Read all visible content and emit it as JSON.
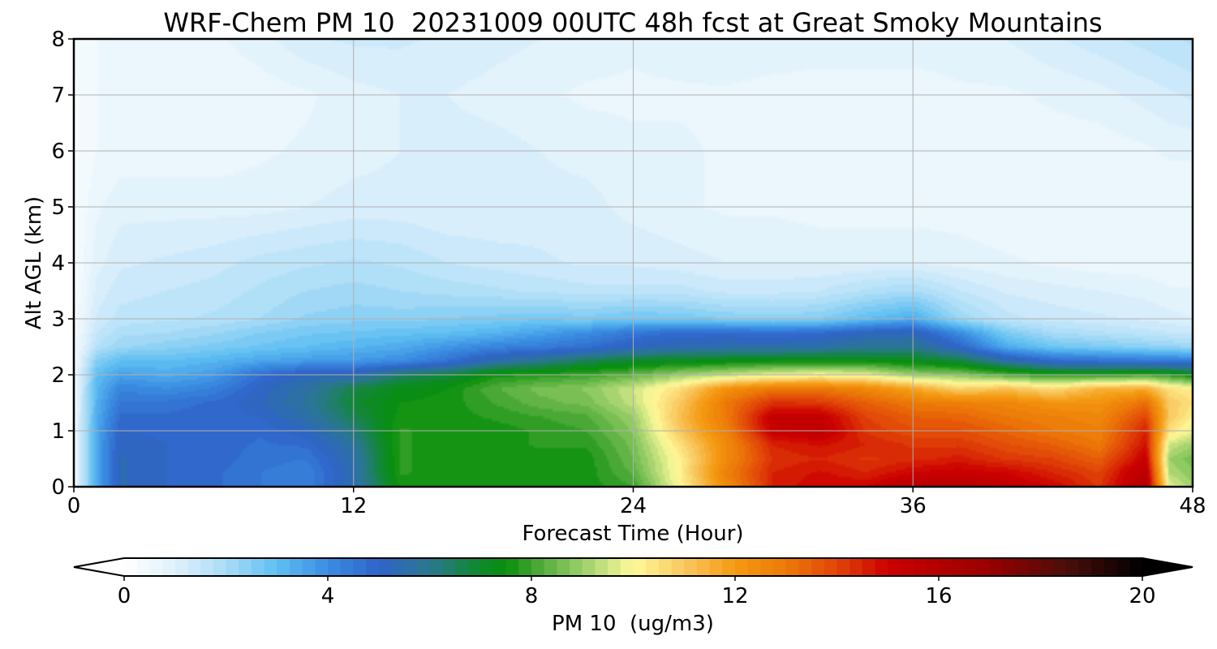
{
  "chart_data": {
    "type": "heatmap",
    "title": "WRF-Chem PM 10  20231009 00UTC 48h fcst at Great Smoky Mountains",
    "xlabel": "Forecast Time (Hour)",
    "ylabel": "Alt AGL (km)",
    "xlim": [
      0,
      48
    ],
    "ylim": [
      0,
      8
    ],
    "x_ticks": [
      0,
      12,
      24,
      36,
      48
    ],
    "y_ticks": [
      0,
      1,
      2,
      3,
      4,
      5,
      6,
      7,
      8
    ],
    "grid": true,
    "colorbar": {
      "label": "PM 10  (ug/m3)",
      "range": [
        0,
        20
      ],
      "ticks": [
        0,
        4,
        8,
        12,
        16,
        20
      ],
      "extend": "both",
      "orientation": "horizontal",
      "colors": [
        {
          "v": 0,
          "c": "#ffffff"
        },
        {
          "v": 1,
          "c": "#dff1fb"
        },
        {
          "v": 2,
          "c": "#a9dcf7"
        },
        {
          "v": 3,
          "c": "#5fbff2"
        },
        {
          "v": 4,
          "c": "#3a8de2"
        },
        {
          "v": 5,
          "c": "#2f63c8"
        },
        {
          "v": 6,
          "c": "#2a7790"
        },
        {
          "v": 7,
          "c": "#0f8a2a"
        },
        {
          "v": 7.5,
          "c": "#078f0b"
        },
        {
          "v": 8,
          "c": "#3ea32e"
        },
        {
          "v": 9,
          "c": "#9ccf6a"
        },
        {
          "v": 10,
          "c": "#fffa9a"
        },
        {
          "v": 11,
          "c": "#f8c860"
        },
        {
          "v": 12,
          "c": "#f59a10"
        },
        {
          "v": 13,
          "c": "#ec7a08"
        },
        {
          "v": 14,
          "c": "#e04408"
        },
        {
          "v": 15,
          "c": "#cc0000"
        },
        {
          "v": 17,
          "c": "#990000"
        },
        {
          "v": 18.5,
          "c": "#4a0e0a"
        },
        {
          "v": 20,
          "c": "#000000"
        }
      ]
    },
    "grid_x": [
      0,
      1,
      2,
      4,
      6,
      8,
      10,
      12,
      14,
      16,
      18,
      20,
      22,
      24,
      26,
      28,
      30,
      32,
      34,
      36,
      38,
      40,
      42,
      44,
      46,
      47,
      48
    ],
    "grid_y": [
      0,
      0.25,
      0.5,
      0.75,
      1,
      1.25,
      1.5,
      1.75,
      2,
      2.25,
      2.5,
      2.75,
      3,
      3.5,
      4,
      5,
      6,
      7,
      8
    ],
    "values": [
      [
        0.5,
        3.5,
        5.3,
        5.0,
        4.8,
        4.5,
        4.3,
        5.5,
        7.5,
        7.6,
        7.6,
        7.5,
        7.6,
        8.0,
        10.0,
        12.5,
        14.5,
        15.0,
        15.0,
        15.8,
        15.8,
        15.4,
        15.0,
        14.2,
        16.0,
        9.8,
        9.0
      ],
      [
        0.5,
        3.5,
        5.3,
        5.0,
        4.8,
        4.5,
        4.3,
        5.5,
        7.8,
        7.6,
        7.6,
        7.6,
        7.6,
        8.3,
        10.2,
        12.8,
        14.5,
        14.8,
        14.5,
        15.0,
        15.2,
        15.0,
        14.5,
        14.0,
        15.8,
        9.2,
        8.8
      ],
      [
        0.5,
        3.5,
        5.3,
        5.0,
        4.9,
        4.6,
        4.5,
        5.6,
        7.8,
        7.6,
        7.6,
        7.6,
        7.6,
        8.5,
        10.2,
        12.5,
        14.3,
        14.5,
        14.2,
        14.4,
        14.6,
        14.2,
        14.0,
        13.5,
        15.2,
        9.0,
        8.6
      ],
      [
        0.5,
        3.5,
        5.2,
        5.0,
        4.9,
        4.7,
        4.8,
        5.8,
        7.8,
        7.6,
        7.6,
        7.8,
        7.8,
        8.6,
        10.5,
        12.5,
        14.5,
        14.8,
        14.5,
        14.2,
        14.2,
        13.8,
        13.5,
        13.0,
        14.8,
        9.5,
        9.0
      ],
      [
        0.5,
        3.5,
        5.0,
        4.9,
        4.9,
        4.8,
        5.2,
        6.2,
        7.8,
        7.6,
        7.6,
        7.8,
        8.0,
        8.8,
        11.0,
        12.8,
        15.2,
        15.5,
        14.2,
        13.8,
        13.8,
        13.4,
        13.0,
        12.8,
        14.5,
        10.5,
        9.8
      ],
      [
        0.5,
        3.4,
        4.8,
        4.8,
        4.9,
        5.0,
        5.6,
        6.6,
        7.6,
        7.6,
        7.8,
        8.0,
        8.2,
        9.0,
        11.2,
        13.0,
        15.3,
        15.3,
        14.0,
        13.5,
        13.4,
        13.0,
        12.8,
        12.6,
        14.0,
        11.0,
        10.2
      ],
      [
        0.5,
        3.3,
        4.5,
        4.6,
        4.8,
        5.2,
        5.8,
        6.9,
        7.5,
        7.6,
        8.0,
        8.4,
        8.6,
        9.4,
        11.0,
        13.0,
        14.3,
        14.2,
        13.5,
        13.0,
        12.8,
        12.6,
        12.2,
        12.2,
        13.2,
        11.0,
        10.5
      ],
      [
        0.5,
        3.2,
        4.2,
        4.0,
        4.3,
        5.1,
        5.7,
        6.7,
        7.3,
        7.5,
        8.2,
        8.6,
        8.8,
        9.5,
        10.6,
        12.3,
        13.0,
        13.0,
        12.6,
        11.8,
        10.8,
        11.2,
        10.6,
        11.5,
        11.6,
        10.5,
        10.2
      ],
      [
        0.4,
        3.0,
        3.6,
        3.4,
        3.7,
        4.7,
        5.3,
        5.4,
        6.4,
        6.8,
        7.6,
        7.8,
        8.0,
        8.4,
        9.0,
        9.4,
        9.8,
        10.0,
        9.8,
        9.0,
        8.8,
        8.2,
        7.8,
        7.8,
        8.0,
        7.8,
        7.4
      ],
      [
        0.4,
        2.5,
        3.0,
        3.0,
        3.2,
        3.5,
        3.7,
        3.8,
        4.0,
        4.6,
        5.5,
        6.0,
        6.6,
        7.0,
        7.2,
        7.3,
        7.4,
        7.4,
        7.4,
        7.2,
        6.8,
        5.6,
        4.8,
        4.6,
        4.5,
        4.4,
        4.4
      ],
      [
        0.3,
        1.8,
        2.2,
        2.4,
        2.6,
        2.8,
        3.0,
        3.2,
        3.4,
        3.8,
        4.2,
        4.4,
        4.7,
        5.2,
        5.4,
        5.5,
        5.5,
        5.6,
        5.9,
        6.0,
        5.0,
        3.4,
        2.8,
        2.6,
        2.4,
        2.3,
        2.2
      ],
      [
        0.3,
        1.5,
        1.9,
        2.0,
        2.2,
        2.5,
        2.7,
        2.8,
        2.9,
        3.0,
        3.2,
        3.6,
        4.0,
        4.5,
        4.8,
        4.8,
        4.7,
        4.8,
        5.2,
        5.3,
        4.0,
        2.6,
        2.0,
        1.8,
        1.6,
        1.5,
        1.4
      ],
      [
        0.3,
        1.3,
        1.6,
        1.7,
        1.8,
        2.0,
        2.3,
        2.4,
        2.4,
        2.5,
        2.6,
        2.7,
        2.6,
        2.8,
        2.7,
        2.5,
        2.4,
        2.5,
        3.0,
        3.4,
        2.2,
        1.6,
        1.4,
        1.3,
        1.2,
        1.1,
        1.0
      ],
      [
        0.2,
        1.1,
        1.4,
        1.5,
        1.6,
        1.8,
        2.0,
        2.1,
        2.0,
        1.9,
        1.8,
        1.7,
        1.6,
        1.6,
        1.6,
        1.4,
        1.4,
        1.5,
        1.8,
        2.0,
        1.5,
        1.2,
        1.1,
        1.0,
        0.9,
        0.8,
        0.8
      ],
      [
        0.2,
        0.9,
        1.2,
        1.3,
        1.4,
        1.6,
        1.7,
        1.8,
        1.7,
        1.5,
        1.4,
        1.3,
        1.2,
        1.2,
        1.1,
        1.0,
        1.0,
        1.0,
        1.0,
        1.0,
        0.9,
        0.8,
        0.7,
        0.6,
        0.6,
        0.5,
        0.5
      ],
      [
        0.2,
        0.7,
        0.9,
        0.9,
        0.9,
        0.9,
        1.0,
        1.1,
        1.1,
        1.0,
        1.0,
        1.1,
        1.1,
        0.9,
        0.8,
        0.7,
        0.7,
        0.6,
        0.6,
        0.6,
        0.6,
        0.5,
        0.5,
        0.5,
        0.5,
        0.5,
        0.5
      ],
      [
        0.2,
        0.5,
        0.6,
        0.6,
        0.6,
        0.7,
        0.8,
        0.9,
        1.0,
        1.1,
        1.1,
        1.0,
        0.9,
        0.8,
        0.8,
        0.7,
        0.7,
        0.6,
        0.6,
        0.6,
        0.6,
        0.6,
        0.6,
        0.6,
        0.7,
        0.8,
        0.8
      ],
      [
        0.2,
        0.5,
        0.5,
        0.5,
        0.5,
        0.6,
        0.7,
        0.9,
        1.0,
        1.0,
        0.9,
        0.8,
        0.7,
        0.7,
        0.7,
        0.7,
        0.6,
        0.6,
        0.6,
        0.6,
        0.7,
        0.7,
        0.8,
        0.9,
        1.1,
        1.2,
        1.3
      ],
      [
        0.3,
        0.5,
        0.5,
        0.6,
        0.7,
        0.9,
        1.2,
        1.3,
        1.3,
        1.2,
        1.1,
        1.0,
        0.9,
        0.8,
        0.9,
        1.0,
        1.0,
        0.9,
        0.9,
        0.9,
        0.9,
        1.0,
        1.2,
        1.4,
        1.6,
        1.7,
        1.8
      ]
    ]
  }
}
